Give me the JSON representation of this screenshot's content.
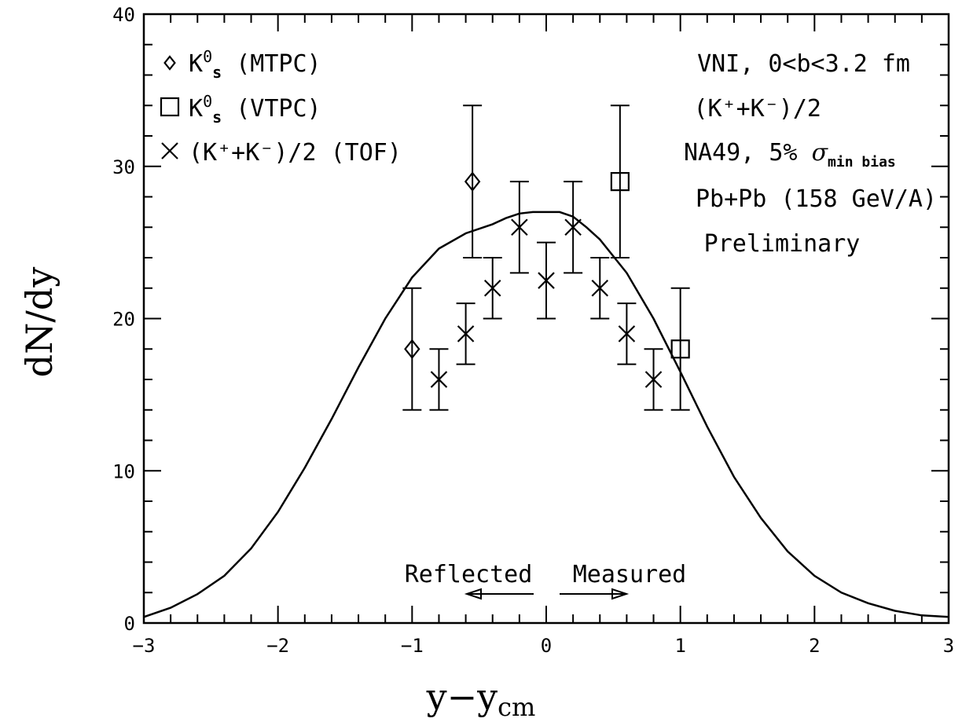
{
  "chart_data": {
    "type": "scatter",
    "xlabel": "y−y",
    "xlabel_sub": "cm",
    "ylabel": "dN/dy",
    "xlim": [
      -3,
      3
    ],
    "ylim": [
      0,
      40
    ],
    "x_ticks": [
      "−3",
      "−2",
      "−1",
      "0",
      "1",
      "2",
      "3"
    ],
    "y_ticks": [
      "0",
      "10",
      "20",
      "30",
      "40"
    ],
    "legend_position": "top-left",
    "grid": false,
    "series": [
      {
        "name": "K0s (MTPC)",
        "marker": "diamond",
        "legend": {
          "main": "K",
          "sup": "0",
          "sub": "s",
          "rest": " (MTPC)"
        },
        "points": [
          {
            "x": -1.0,
            "y": 18.0,
            "err": 4.0
          },
          {
            "x": -0.55,
            "y": 29.0,
            "err": 5.0
          }
        ]
      },
      {
        "name": "K0s (VTPC)",
        "marker": "square",
        "legend": {
          "main": "K",
          "sup": "0",
          "sub": "s",
          "rest": " (VTPC)"
        },
        "points": [
          {
            "x": 0.55,
            "y": 29.0,
            "err": 5.0
          },
          {
            "x": 1.0,
            "y": 18.0,
            "err": 4.0
          }
        ]
      },
      {
        "name": "(K+ + K−)/2 (TOF)",
        "marker": "cross",
        "legend": {
          "text": "(K⁺+K⁻)/2 (TOF)"
        },
        "points": [
          {
            "x": -0.8,
            "y": 16.0,
            "err": 2.0
          },
          {
            "x": -0.6,
            "y": 19.0,
            "err": 2.0
          },
          {
            "x": -0.4,
            "y": 22.0,
            "err": 2.0
          },
          {
            "x": -0.2,
            "y": 26.0,
            "err": 3.0
          },
          {
            "x": 0.0,
            "y": 22.5,
            "err": 2.5
          },
          {
            "x": 0.2,
            "y": 26.0,
            "err": 3.0
          },
          {
            "x": 0.4,
            "y": 22.0,
            "err": 2.0
          },
          {
            "x": 0.6,
            "y": 19.0,
            "err": 2.0
          },
          {
            "x": 0.8,
            "y": 16.0,
            "err": 2.0
          }
        ]
      }
    ],
    "curve": {
      "name": "VNI, 0<b<3.2 fm (K⁺+K⁻)/2",
      "x": [
        -3.0,
        -2.8,
        -2.6,
        -2.4,
        -2.2,
        -2.0,
        -1.8,
        -1.6,
        -1.4,
        -1.2,
        -1.0,
        -0.8,
        -0.6,
        -0.4,
        -0.3,
        -0.2,
        -0.1,
        0.0,
        0.1,
        0.2,
        0.3,
        0.4,
        0.6,
        0.8,
        1.0,
        1.2,
        1.4,
        1.6,
        1.8,
        2.0,
        2.2,
        2.4,
        2.6,
        2.8,
        3.0
      ],
      "y": [
        0.4,
        1.0,
        1.9,
        3.1,
        4.9,
        7.3,
        10.2,
        13.4,
        16.8,
        20.0,
        22.7,
        24.6,
        25.6,
        26.2,
        26.6,
        26.9,
        27.0,
        27.0,
        27.0,
        26.7,
        26.0,
        25.2,
        23.0,
        20.0,
        16.5,
        12.9,
        9.6,
        6.9,
        4.7,
        3.1,
        2.0,
        1.3,
        0.8,
        0.5,
        0.4
      ]
    },
    "annotations": {
      "model_label": "VNI, 0<b<3.2 fm",
      "model_species": "(K⁺+K⁻)/2",
      "experiment_main": "NA49, 5% ",
      "experiment_sigma": "σ",
      "experiment_sub": "min bias",
      "system": "Pb+Pb (158 GeV/A)",
      "status": "Preliminary",
      "reflected": "Reflected",
      "measured": "Measured"
    }
  }
}
